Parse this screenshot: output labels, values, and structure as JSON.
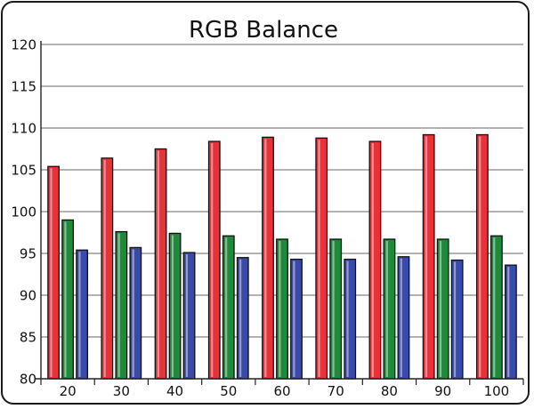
{
  "chart_data": {
    "type": "bar",
    "title": "RGB Balance",
    "categories": [
      "20",
      "30",
      "40",
      "50",
      "60",
      "70",
      "80",
      "90",
      "100"
    ],
    "series": [
      {
        "color": "#e8323a",
        "values": [
          105.4,
          106.4,
          107.5,
          108.4,
          108.9,
          108.8,
          108.4,
          109.2,
          109.2
        ]
      },
      {
        "color": "#1f8a3c",
        "values": [
          99.0,
          97.6,
          97.4,
          97.1,
          96.7,
          96.7,
          96.7,
          96.7,
          97.1
        ]
      },
      {
        "color": "#3a4aa8",
        "values": [
          95.4,
          95.7,
          95.1,
          94.5,
          94.3,
          94.3,
          94.6,
          94.2,
          93.6
        ]
      }
    ],
    "ylim": [
      80,
      120
    ],
    "yticks": [
      "80",
      "85",
      "90",
      "95",
      "100",
      "105",
      "110",
      "115",
      "120"
    ],
    "grid": true,
    "xlabel": "",
    "ylabel": ""
  }
}
